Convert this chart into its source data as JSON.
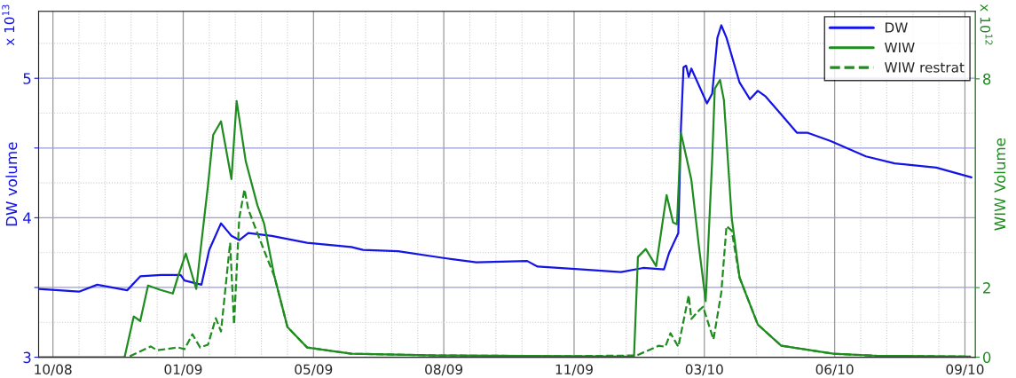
{
  "chart_data": {
    "type": "line",
    "ylabel": "DW volume",
    "y2label": "WIW Volume",
    "annotations": [
      "x 10$^{13}$",
      "x 10$^{12}$"
    ],
    "xlim": [
      "2008-10-09",
      "2010-09-28"
    ],
    "xticks": [
      {
        "value": "2008-10-20",
        "label": "10/08"
      },
      {
        "value": "2009-01-28",
        "label": "01/09"
      },
      {
        "value": "2009-05-08",
        "label": "05/09"
      },
      {
        "value": "2009-08-16",
        "label": "08/09"
      },
      {
        "value": "2009-11-24",
        "label": "11/09"
      },
      {
        "value": "2010-03-04",
        "label": "03/10"
      },
      {
        "value": "2010-06-12",
        "label": "06/10"
      },
      {
        "value": "2010-09-20",
        "label": "09/10"
      }
    ],
    "ylim": [
      3,
      5.48
    ],
    "yticks": [
      3,
      {
        "value": 3.5,
        "label": null
      },
      4,
      {
        "value": 4.5,
        "label": null
      },
      5
    ],
    "y2lim": [
      0,
      9.94
    ],
    "y2ticks": [
      0,
      2,
      8
    ],
    "grid": true,
    "legend": "top right",
    "line_style": "solid",
    "marker": "none",
    "series": [
      {
        "name": "DW",
        "color": "#1414e6",
        "x": [
          "2008-10-09",
          "2008-11-09",
          "2008-11-23",
          "2008-12-16",
          "2008-12-26",
          "2009-01-11",
          "2009-01-26",
          "2009-01-29",
          "2009-02-11",
          "2009-02-17",
          "2009-02-26",
          "2009-03-06",
          "2009-03-12",
          "2009-03-19",
          "2009-04-06",
          "2009-05-03",
          "2009-06-06",
          "2009-06-15",
          "2009-07-12",
          "2009-08-17",
          "2009-09-10",
          "2009-10-19",
          "2009-10-27",
          "2009-11-30",
          "2009-12-30",
          "2010-01-16",
          "2010-02-01",
          "2010-02-05",
          "2010-02-12",
          "2010-02-14",
          "2010-02-16",
          "2010-02-18",
          "2010-02-20",
          "2010-02-22",
          "2010-03-06",
          "2010-03-10",
          "2010-03-14",
          "2010-03-17",
          "2010-03-21",
          "2010-03-31",
          "2010-04-08",
          "2010-04-14",
          "2010-04-20",
          "2010-05-02",
          "2010-05-14",
          "2010-05-22",
          "2010-06-09",
          "2010-07-06",
          "2010-07-28",
          "2010-08-29",
          "2010-09-25"
        ],
        "values": [
          3.49,
          3.47,
          3.52,
          3.48,
          3.58,
          3.59,
          3.59,
          3.55,
          3.52,
          3.77,
          3.96,
          3.87,
          3.84,
          3.89,
          3.87,
          3.82,
          3.79,
          3.77,
          3.76,
          3.71,
          3.68,
          3.69,
          3.65,
          3.63,
          3.61,
          3.64,
          3.63,
          3.75,
          3.89,
          4.64,
          5.08,
          5.09,
          5.01,
          5.07,
          4.82,
          4.89,
          5.29,
          5.38,
          5.29,
          4.97,
          4.85,
          4.91,
          4.87,
          4.74,
          4.61,
          4.61,
          4.55,
          4.44,
          4.39,
          4.36,
          4.29
        ]
      },
      {
        "name": "WIW",
        "color": "#1e8c1e",
        "axis": "y2",
        "x": [
          "2008-10-09",
          "2008-12-14",
          "2008-12-21",
          "2008-12-26",
          "2009-01-01",
          "2009-01-10",
          "2009-01-20",
          "2009-01-24",
          "2009-01-30",
          "2009-02-07",
          "2009-02-10",
          "2009-02-16",
          "2009-02-20",
          "2009-02-26",
          "2009-03-06",
          "2009-03-10",
          "2009-03-17",
          "2009-03-26",
          "2009-03-31",
          "2009-04-08",
          "2009-04-18",
          "2009-05-03",
          "2009-06-06",
          "2009-08-12",
          "2009-11-21",
          "2010-01-06",
          "2010-01-09",
          "2010-01-12",
          "2010-01-18",
          "2010-01-26",
          "2010-01-31",
          "2010-02-03",
          "2010-02-08",
          "2010-02-11",
          "2010-02-14",
          "2010-02-18",
          "2010-02-22",
          "2010-02-28",
          "2010-03-05",
          "2010-03-10",
          "2010-03-12",
          "2010-03-16",
          "2010-03-19",
          "2010-03-25",
          "2010-03-31",
          "2010-04-14",
          "2010-05-02",
          "2010-06-11",
          "2010-07-15",
          "2010-09-24"
        ],
        "values": [
          0,
          0,
          1.17,
          1.04,
          2.06,
          1.94,
          1.83,
          2.32,
          2.98,
          1.96,
          2.98,
          4.94,
          6.39,
          6.78,
          5.12,
          7.36,
          5.63,
          4.36,
          3.85,
          2.32,
          0.87,
          0.28,
          0.1,
          0.05,
          0.03,
          0.02,
          0.02,
          2.88,
          3.11,
          2.62,
          3.9,
          4.66,
          3.87,
          3.82,
          6.45,
          5.78,
          5.1,
          3.13,
          1.61,
          5.68,
          7.72,
          7.97,
          7.39,
          4.0,
          2.29,
          0.94,
          0.33,
          0.1,
          0.04,
          0.02
        ]
      },
      {
        "name": "WIW restrat",
        "color": "#1e8c1e",
        "axis": "y2",
        "line_style": "dashed",
        "x": [
          "2008-12-18",
          "2009-01-03",
          "2009-01-08",
          "2009-01-24",
          "2009-01-29",
          "2009-02-04",
          "2009-02-10",
          "2009-02-16",
          "2009-02-22",
          "2009-02-26",
          "2009-03-05",
          "2009-03-08",
          "2009-03-12",
          "2009-03-16",
          "2009-03-19",
          "2009-03-23",
          "2009-04-01",
          "2009-04-08",
          "2009-04-18",
          "2009-05-03",
          "2009-06-06",
          "2009-08-12",
          "2009-11-21",
          "2010-01-11",
          "2010-01-28",
          "2010-02-02",
          "2010-02-06",
          "2010-02-12",
          "2010-02-20",
          "2010-02-22",
          "2010-02-28",
          "2010-03-03",
          "2010-03-11",
          "2010-03-17",
          "2010-03-21",
          "2010-03-25",
          "2010-03-31",
          "2010-04-14",
          "2010-05-02",
          "2010-06-11",
          "2010-07-15",
          "2010-09-24"
        ],
        "values": [
          0.03,
          0.31,
          0.2,
          0.28,
          0.23,
          0.66,
          0.28,
          0.36,
          1.12,
          0.74,
          3.29,
          0.94,
          4.0,
          4.82,
          4.25,
          3.85,
          2.98,
          2.32,
          0.87,
          0.28,
          0.1,
          0.05,
          0.03,
          0.05,
          0.33,
          0.3,
          0.69,
          0.3,
          1.78,
          1.1,
          1.35,
          1.45,
          0.51,
          1.86,
          3.77,
          3.64,
          2.29,
          0.94,
          0.33,
          0.1,
          0.04,
          0.02
        ]
      }
    ]
  }
}
